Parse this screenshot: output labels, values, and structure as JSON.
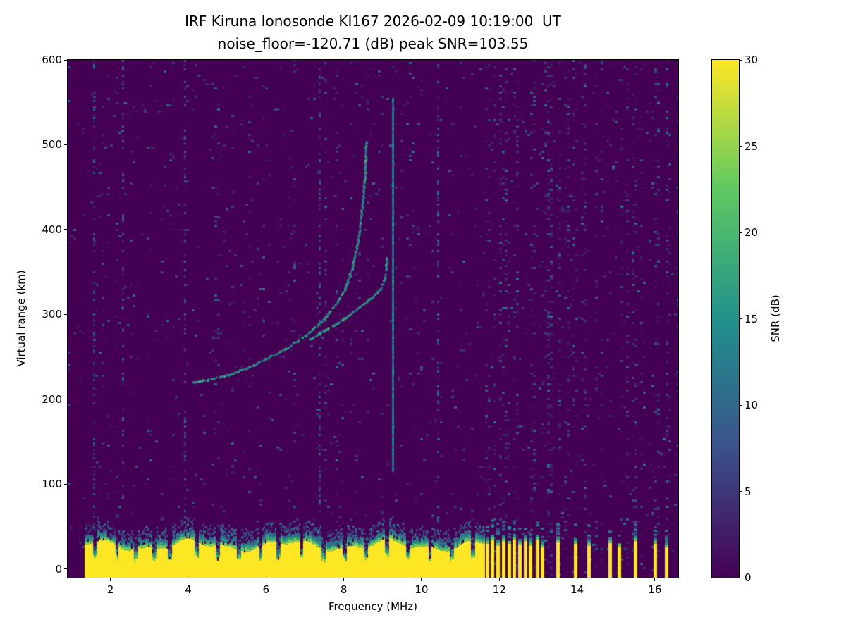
{
  "chart_data": {
    "type": "heatmap",
    "title": "IRF Kiruna Ionosonde KI167 2026-02-09 10:19:00  UT",
    "subtitle": "noise_floor=-120.71 (dB) peak SNR=103.55",
    "xlabel": "Frequency (MHz)",
    "ylabel": "Virtual range (km)",
    "xlim": [
      0.9,
      16.6
    ],
    "ylim": [
      -10,
      600
    ],
    "xticks": [
      2,
      4,
      6,
      8,
      10,
      12,
      14,
      16
    ],
    "yticks": [
      0,
      100,
      200,
      300,
      400,
      500,
      600
    ],
    "grid": false,
    "legend": "none",
    "colorbar": {
      "label": "SNR (dB)",
      "min": 0,
      "max": 30,
      "ticks": [
        0,
        5,
        10,
        15,
        20,
        25,
        30
      ],
      "colormap": "viridis",
      "colormap_stops": [
        [
          0.0,
          "#440154"
        ],
        [
          0.25,
          "#3b528b"
        ],
        [
          0.5,
          "#21918c"
        ],
        [
          0.75,
          "#5ec962"
        ],
        [
          1.0,
          "#fde725"
        ]
      ]
    },
    "features": {
      "background_snr_db": 0,
      "ground_clutter": {
        "min_freq_mhz": 1.3,
        "solid_max_freq_mhz": 11.6,
        "mean_top_km": 27,
        "speckle_top_km": 50,
        "snr_db": 30
      },
      "clutter_gaps_mhz": [
        1.6,
        2.15,
        2.65,
        3.1,
        3.5,
        4.2,
        4.75,
        5.3,
        5.85,
        6.3,
        6.9,
        7.45,
        8.0,
        8.55,
        9.1,
        9.65,
        10.2,
        10.75,
        11.3
      ],
      "ionospheric_traces": [
        {
          "name": "F-layer O-mode echo",
          "points": [
            [
              4.1,
              221
            ],
            [
              4.5,
              224
            ],
            [
              5.0,
              230
            ],
            [
              5.5,
              238
            ],
            [
              6.0,
              249
            ],
            [
              6.5,
              261
            ],
            [
              7.0,
              276
            ],
            [
              7.4,
              292
            ],
            [
              7.7,
              308
            ],
            [
              8.0,
              330
            ],
            [
              8.2,
              356
            ],
            [
              8.35,
              388
            ],
            [
              8.45,
              425
            ],
            [
              8.52,
              462
            ],
            [
              8.57,
              505
            ]
          ]
        },
        {
          "name": "F-layer X-mode echo",
          "points": [
            [
              7.1,
              272
            ],
            [
              7.5,
              282
            ],
            [
              8.0,
              296
            ],
            [
              8.4,
              310
            ],
            [
              8.7,
              321
            ],
            [
              8.9,
              330
            ],
            [
              9.02,
              340
            ],
            [
              9.1,
              368
            ]
          ]
        }
      ],
      "rfi_vertical_line": {
        "freq_mhz": 9.25,
        "range_km": [
          115,
          555
        ],
        "snr_db": 13
      },
      "interference_bars": [
        [
          11.68,
          30
        ],
        [
          11.82,
          34
        ],
        [
          11.96,
          28
        ],
        [
          12.1,
          33
        ],
        [
          12.24,
          30
        ],
        [
          12.38,
          35
        ],
        [
          12.52,
          29
        ],
        [
          12.66,
          33
        ],
        [
          12.8,
          28
        ],
        [
          12.97,
          34
        ],
        [
          13.1,
          26
        ],
        [
          13.5,
          32
        ],
        [
          13.95,
          30
        ],
        [
          14.3,
          28
        ],
        [
          14.85,
          31
        ],
        [
          15.08,
          27
        ],
        [
          15.5,
          33
        ],
        [
          16.0,
          30
        ],
        [
          16.3,
          26
        ]
      ],
      "noise": {
        "noisy_columns_mhz": [
          1.55,
          2.3,
          3.9,
          7.35,
          10.4
        ]
      }
    }
  }
}
